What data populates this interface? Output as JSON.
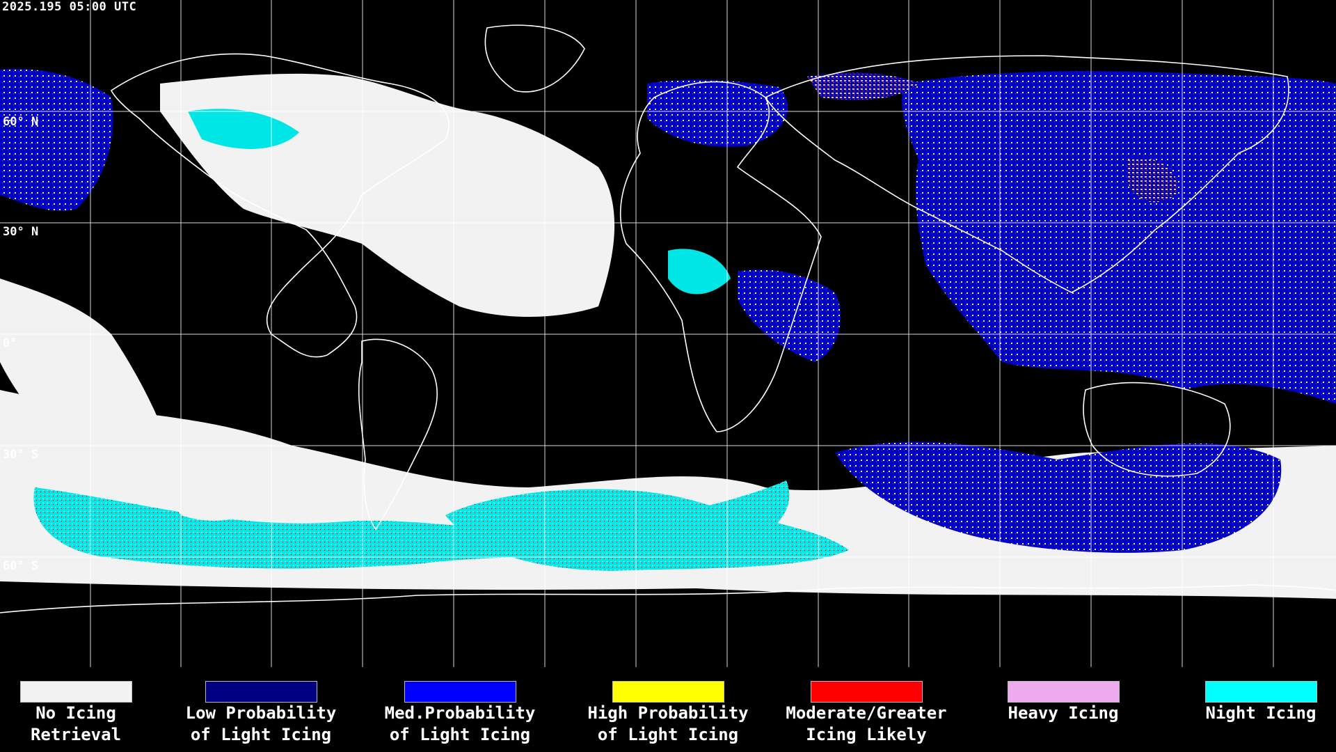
{
  "map": {
    "timestamp": "2025.195 05:00 UTC",
    "lat_labels": [
      "60° N",
      "30° N",
      "0°",
      "30° S",
      "60° S"
    ],
    "background_color": "#000000",
    "grid_color": "#ffffff",
    "coastline_color": "#ffffff"
  },
  "legend": {
    "items": [
      {
        "line1": "No Icing",
        "line2": "Retrieval",
        "color": "#f2f2f2"
      },
      {
        "line1": "Low Probability",
        "line2": "of Light Icing",
        "color": "#000080"
      },
      {
        "line1": "Med.Probability",
        "line2": "of Light Icing",
        "color": "#0000ff"
      },
      {
        "line1": "High Probability",
        "line2": "of Light Icing",
        "color": "#ffff00"
      },
      {
        "line1": "Moderate/Greater",
        "line2": "Icing Likely",
        "color": "#ff0000"
      },
      {
        "line1": "Heavy Icing",
        "line2": "",
        "color": "#eeaaee"
      },
      {
        "line1": "Night Icing",
        "line2": "",
        "color": "#00ffff"
      }
    ]
  }
}
